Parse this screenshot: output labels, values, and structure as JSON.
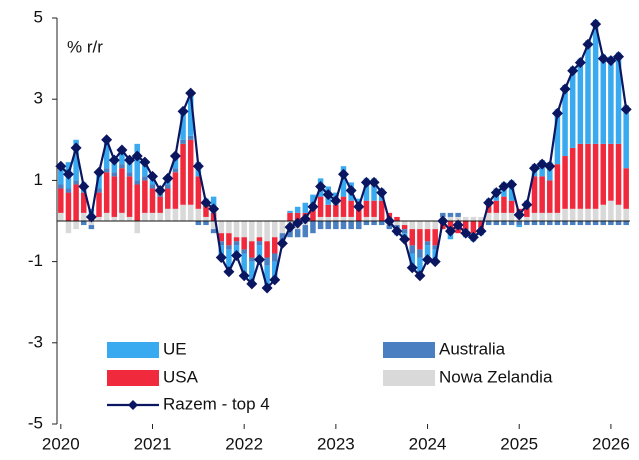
{
  "chart_data": {
    "type": "bar",
    "annotations": [
      "% r/r"
    ],
    "categories": [
      "2020",
      null,
      null,
      null,
      null,
      null,
      null,
      null,
      null,
      null,
      null,
      null,
      "2021",
      null,
      null,
      null,
      null,
      null,
      null,
      null,
      null,
      null,
      null,
      null,
      "2022",
      null,
      null,
      null,
      null,
      null,
      null,
      null,
      null,
      null,
      null,
      null,
      "2023",
      null,
      null,
      null,
      null,
      null,
      null,
      null,
      null,
      null,
      null,
      null,
      "2024",
      null,
      null,
      null,
      null,
      null,
      null,
      null,
      null,
      null,
      null,
      null,
      "2025",
      null,
      null,
      null,
      null,
      null,
      null,
      null,
      null,
      null,
      null,
      null,
      "2026",
      null,
      null
    ],
    "series": [
      {
        "name": "UE",
        "color": "#3aaaf0",
        "values": [
          0.45,
          0.65,
          1.0,
          0.25,
          0.2,
          0.4,
          0.7,
          0.3,
          0.35,
          0.3,
          0.9,
          0.35,
          0.2,
          0.05,
          0.15,
          0.3,
          0.7,
          1.05,
          0.35,
          0.15,
          0.4,
          -0.3,
          -0.55,
          -0.25,
          -0.55,
          -0.55,
          -0.35,
          -0.55,
          -0.45,
          -0.05,
          0.05,
          0.15,
          0.25,
          0.35,
          0.45,
          0.45,
          0.3,
          0.75,
          0.45,
          0.25,
          0.55,
          0.55,
          0.3,
          0,
          -0.15,
          -0.15,
          -0.35,
          -0.45,
          -0.35,
          -0.3,
          0,
          -0.15,
          0,
          -0.1,
          -0.1,
          -0.05,
          0.15,
          0.3,
          0.35,
          0.5,
          -0.05,
          0.1,
          0.3,
          0.4,
          0.45,
          1.35,
          1.75,
          2.0,
          2.1,
          2.55,
          3.05,
          2.2,
          2.15,
          2.25,
          1.55
        ]
      },
      {
        "name": "Australia",
        "color": "#4a7fc1",
        "values": [
          0.1,
          0.1,
          0.1,
          -0.1,
          -0.1,
          0.1,
          0.1,
          0.1,
          0.1,
          0.1,
          0.1,
          0.1,
          0.1,
          0.1,
          0.1,
          0.1,
          0.1,
          0.1,
          -0.1,
          -0.1,
          -0.1,
          -0.1,
          -0.1,
          -0.1,
          -0.1,
          -0.1,
          -0.1,
          -0.2,
          -0.2,
          -0.2,
          -0.2,
          -0.2,
          -0.3,
          -0.3,
          -0.2,
          -0.2,
          -0.2,
          -0.2,
          -0.2,
          -0.2,
          -0.1,
          -0.1,
          -0.1,
          -0.1,
          -0.1,
          -0.1,
          -0.2,
          -0.2,
          -0.1,
          -0.1,
          0.1,
          0.1,
          0.1,
          -0.1,
          -0.1,
          -0.1,
          -0.1,
          -0.1,
          -0.1,
          -0.1,
          -0.1,
          -0.1,
          -0.1,
          -0.1,
          -0.1,
          -0.1,
          -0.1,
          -0.1,
          -0.1,
          -0.1,
          -0.1,
          -0.1,
          -0.1,
          -0.1,
          -0.1
        ]
      },
      {
        "name": "USA",
        "color": "#f02a3c",
        "values": [
          0.6,
          0.7,
          0.9,
          0.5,
          0.1,
          0.6,
          1.0,
          1.0,
          1.1,
          1.0,
          0.9,
          0.8,
          0.6,
          0.4,
          0.5,
          0.9,
          1.5,
          1.6,
          0.8,
          0.3,
          0.2,
          -0.2,
          -0.3,
          -0.1,
          -0.3,
          -0.4,
          -0.1,
          -0.4,
          -0.4,
          0,
          0.2,
          0.2,
          0.2,
          0.3,
          0.5,
          0.3,
          0.3,
          0.5,
          0.4,
          0.3,
          0.4,
          0.4,
          0.5,
          0.2,
          0.1,
          -0.1,
          -0.4,
          -0.5,
          -0.3,
          -0.4,
          -0.2,
          -0.3,
          -0.3,
          -0.2,
          -0.3,
          -0.2,
          0.2,
          0.3,
          0.4,
          0.3,
          0.2,
          0.3,
          0.9,
          0.9,
          0.8,
          1.2,
          1.3,
          1.5,
          1.6,
          1.6,
          1.6,
          1.5,
          1.4,
          1.5,
          1.0
        ]
      },
      {
        "name": "Nowa Zelandia",
        "color": "#d9d9d9",
        "values": [
          0.2,
          -0.3,
          -0.2,
          0.2,
          -0.1,
          0.1,
          0.2,
          0.1,
          0.2,
          0.1,
          -0.3,
          0.2,
          0.2,
          0.2,
          0.3,
          0.3,
          0.4,
          0.4,
          0.3,
          0.1,
          -0.2,
          -0.3,
          -0.3,
          -0.4,
          -0.4,
          -0.5,
          -0.4,
          -0.5,
          -0.4,
          -0.3,
          -0.2,
          -0.2,
          -0.1,
          0,
          0.1,
          0.1,
          0.1,
          0.1,
          0.1,
          0,
          0.1,
          0.1,
          0,
          -0.1,
          -0.1,
          -0.1,
          -0.2,
          -0.2,
          -0.2,
          -0.2,
          0.1,
          0.1,
          0.1,
          0.1,
          0.1,
          0.1,
          0.2,
          0.2,
          0.2,
          0.2,
          0.1,
          0.1,
          0.2,
          0.2,
          0.2,
          0.2,
          0.3,
          0.3,
          0.3,
          0.3,
          0.3,
          0.4,
          0.5,
          0.4,
          0.3
        ]
      },
      {
        "name": "Razem - top 4",
        "color": "#0b1660",
        "type": "line",
        "values": [
          1.35,
          1.15,
          1.8,
          0.85,
          0.1,
          1.2,
          2.0,
          1.5,
          1.75,
          1.5,
          1.6,
          1.45,
          1.1,
          0.75,
          1.05,
          1.6,
          2.7,
          3.15,
          1.35,
          0.45,
          0.3,
          -0.9,
          -1.25,
          -0.85,
          -1.35,
          -1.55,
          -0.95,
          -1.65,
          -1.45,
          -0.55,
          -0.15,
          -0.05,
          0.05,
          0.35,
          0.85,
          0.65,
          0.5,
          1.15,
          0.75,
          0.35,
          0.95,
          0.95,
          0.7,
          0,
          -0.25,
          -0.45,
          -1.15,
          -1.35,
          -0.95,
          -1.0,
          0,
          -0.25,
          -0.1,
          -0.3,
          -0.4,
          -0.25,
          0.45,
          0.7,
          0.85,
          0.9,
          0.15,
          0.4,
          1.3,
          1.4,
          1.35,
          2.65,
          3.25,
          3.7,
          3.9,
          4.35,
          4.85,
          4.0,
          3.95,
          4.05,
          2.75
        ]
      }
    ],
    "ylim": [
      -5,
      5
    ],
    "yticks": [
      5,
      3,
      1,
      -1,
      -3,
      -5
    ],
    "grid": false,
    "legend": "lower left"
  }
}
